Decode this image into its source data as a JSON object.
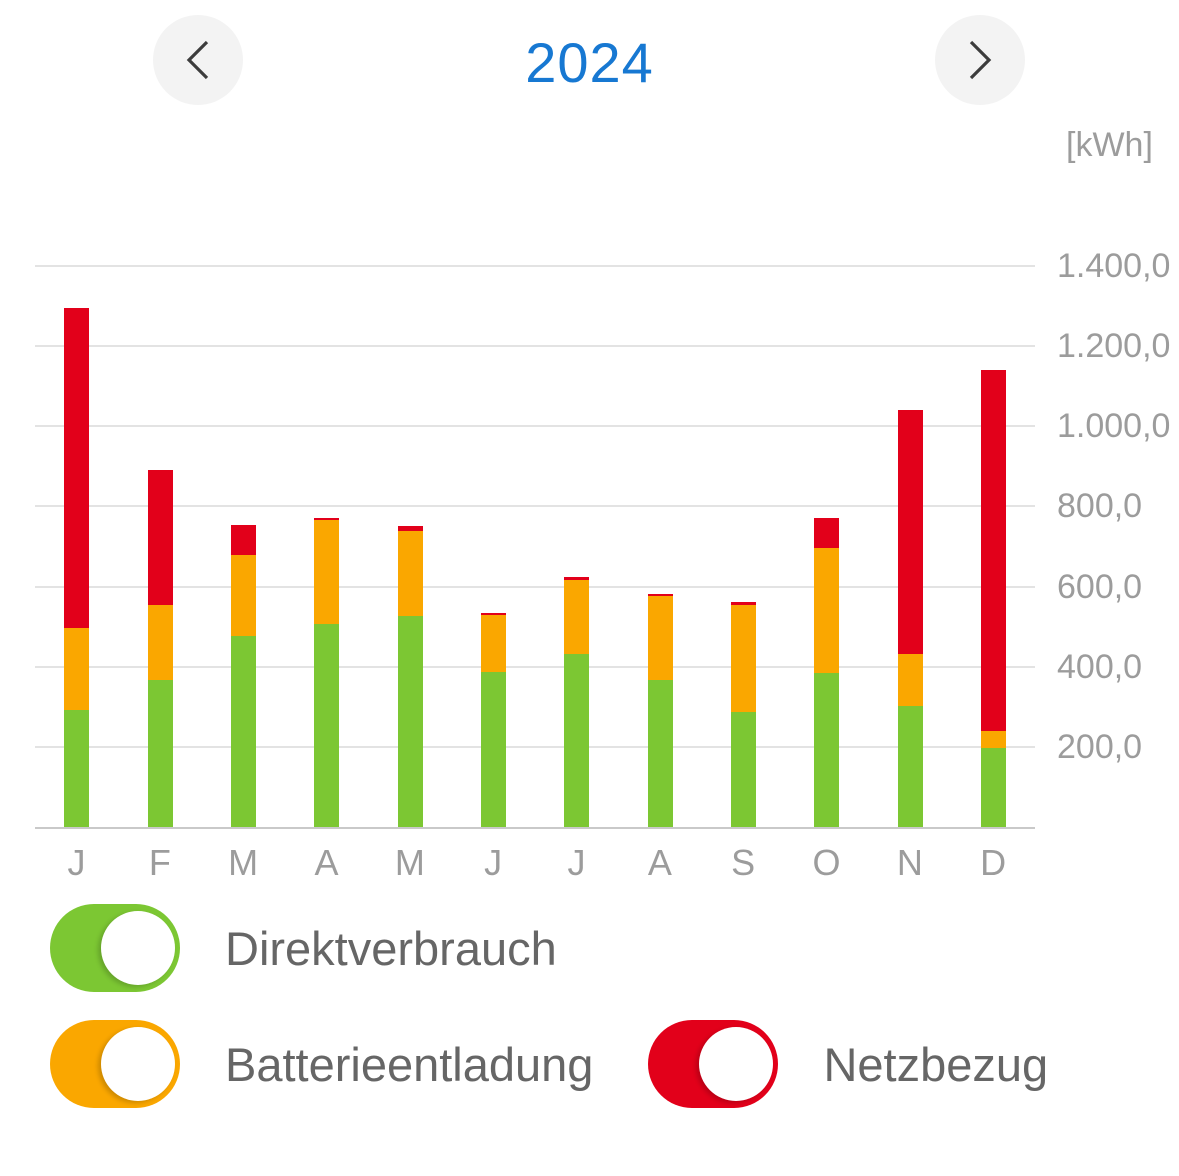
{
  "header": {
    "title": "2024",
    "prev_button": "chevron-left",
    "next_button": "chevron-right"
  },
  "unit_label": "[kWh]",
  "chart_data": {
    "type": "bar",
    "stacked": true,
    "title": "2024",
    "ylabel": "[kWh]",
    "ylim": [
      0,
      1450
    ],
    "grid": true,
    "legend_position": "bottom",
    "categories": [
      "J",
      "F",
      "M",
      "A",
      "M",
      "J",
      "J",
      "A",
      "S",
      "O",
      "N",
      "D"
    ],
    "series": [
      {
        "name": "Direktverbrauch",
        "color": "#7cc733",
        "values": [
          293,
          368,
          476,
          506,
          527,
          388,
          433,
          368,
          287,
          385,
          302,
          198
        ]
      },
      {
        "name": "Batterieentladung",
        "color": "#faa700",
        "values": [
          204,
          185,
          204,
          260,
          213,
          142,
          183,
          208,
          268,
          312,
          130,
          42
        ]
      },
      {
        "name": "Netzbezug",
        "color": "#e2001a",
        "values": [
          799,
          338,
          73,
          6,
          12,
          5,
          8,
          5,
          6,
          74,
          610,
          901
        ]
      }
    ],
    "yticks": [
      {
        "value": 200,
        "label": "200,0"
      },
      {
        "value": 400,
        "label": "400,0"
      },
      {
        "value": 600,
        "label": "600,0"
      },
      {
        "value": 800,
        "label": "800,0"
      },
      {
        "value": 1000,
        "label": "1.000,0"
      },
      {
        "value": 1200,
        "label": "1.200,0"
      },
      {
        "value": 1400,
        "label": "1.400,0"
      }
    ]
  },
  "legend": {
    "items": [
      {
        "label": "Direktverbrauch",
        "color": "#7cc733",
        "on": true
      },
      {
        "label": "Batterieentladung",
        "color": "#faa700",
        "on": true
      },
      {
        "label": "Netzbezug",
        "color": "#e2001a",
        "on": true
      }
    ]
  },
  "colors": {
    "title_blue": "#1778d2",
    "axis_text": "#9c9c9c",
    "legend_text": "#666666",
    "gridline": "#e3e3e3",
    "axis_line": "#c9c9c9",
    "nav_circle": "#f3f3f3",
    "chevron": "#3c3c3c"
  }
}
